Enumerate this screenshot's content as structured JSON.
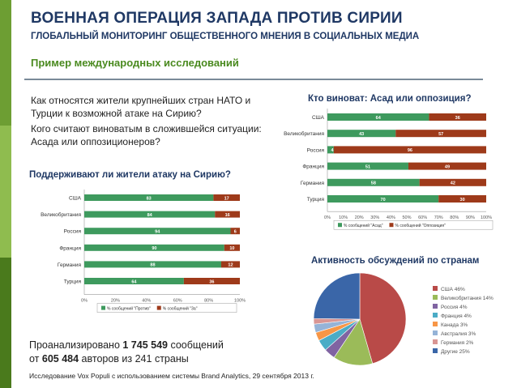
{
  "header": {
    "title": "ВОЕННАЯ ОПЕРАЦИЯ ЗАПАДА ПРОТИВ СИРИИ",
    "subtitle": "ГЛОБАЛЬНЫЙ МОНИТОРИНГ ОБЩЕСТВЕННОГО МНЕНИЯ В СОЦИАЛЬНЫХ МЕДИА",
    "section": "Пример международных исследований"
  },
  "questions": {
    "q1": "Как относятся жители крупнейших стран НАТО и Турции к возможной атаке на Сирию?",
    "q2": "Кого считают виноватым в сложившейся ситуации: Асада или оппозиционеров?"
  },
  "stats": {
    "line1_prefix": "Проанализировано ",
    "messages": "1 745 549",
    "line1_suffix": " сообщений",
    "line2_prefix": "от ",
    "authors": "605 484",
    "line2_suffix": " авторов из 241 страны"
  },
  "footer": "Исследование Vox Populi с использованием системы Brand Analytics, 29 сентября 2013 г.",
  "colors": {
    "green": "#3e9a5e",
    "brown": "#9e3a1a",
    "accent": "#6d9e33",
    "navy": "#1f3864"
  },
  "chart_data": [
    {
      "type": "bar",
      "stacked": true,
      "orientation": "horizontal",
      "title": "Поддерживают ли жители атаку на Сирию?",
      "categories": [
        "США",
        "Великобритания",
        "Россия",
        "Франция",
        "Германия",
        "Турция"
      ],
      "series": [
        {
          "name": "% сообщений \"Против\"",
          "color": "#3e9a5e",
          "values": [
            83,
            84,
            94,
            90,
            88,
            64
          ]
        },
        {
          "name": "% сообщений \"За\"",
          "color": "#9e3a1a",
          "values": [
            17,
            16,
            6,
            10,
            12,
            36
          ]
        }
      ],
      "xlim": [
        0,
        100
      ],
      "xticks": [
        "0%",
        "20%",
        "40%",
        "60%",
        "80%",
        "100%"
      ],
      "legend": "bottom"
    },
    {
      "type": "bar",
      "stacked": true,
      "orientation": "horizontal",
      "title": "Кто виноват: Асад или оппозиция?",
      "categories": [
        "США",
        "Великобритания",
        "Россия",
        "Франция",
        "Германия",
        "Турция"
      ],
      "series": [
        {
          "name": "% сообщений \"Асад\"",
          "color": "#3e9a5e",
          "values": [
            64,
            43,
            4,
            51,
            58,
            70
          ]
        },
        {
          "name": "% сообщений \"Оппозиция\"",
          "color": "#9e3a1a",
          "values": [
            36,
            57,
            96,
            49,
            42,
            30
          ]
        }
      ],
      "xlim": [
        0,
        100
      ],
      "xticks": [
        "0%",
        "10%",
        "20%",
        "30%",
        "40%",
        "50%",
        "60%",
        "70%",
        "80%",
        "90%",
        "100%"
      ],
      "legend": "bottom"
    },
    {
      "type": "pie",
      "title": "Активность обсуждений по странам",
      "slices": [
        {
          "label": "США",
          "value": 46,
          "pct": "46%",
          "color": "#b94a48"
        },
        {
          "label": "Великобритания",
          "value": 14,
          "pct": "14%",
          "color": "#9bbb59"
        },
        {
          "label": "Россия",
          "value": 4,
          "pct": "4%",
          "color": "#8064a2"
        },
        {
          "label": "Франция",
          "value": 4,
          "pct": "4%",
          "color": "#4bacc6"
        },
        {
          "label": "Канада",
          "value": 3,
          "pct": "3%",
          "color": "#f79646"
        },
        {
          "label": "Австралия",
          "value": 3,
          "pct": "3%",
          "color": "#95b3d7"
        },
        {
          "label": "Германия",
          "value": 2,
          "pct": "2%",
          "color": "#d99694"
        },
        {
          "label": "Другие",
          "value": 25,
          "pct": "25%",
          "color": "#3a66a8"
        }
      ],
      "legend": "right"
    }
  ]
}
